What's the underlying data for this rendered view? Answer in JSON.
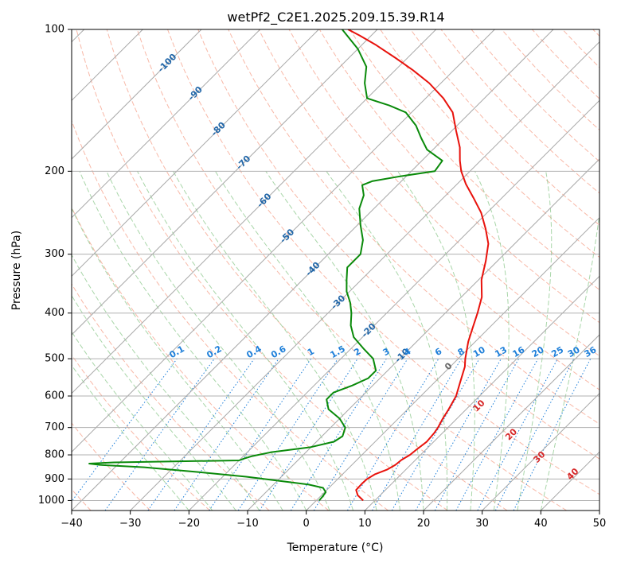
{
  "chart_data": {
    "type": "line",
    "subtype": "skew-t log-p diagram",
    "title": "wetPf2_C2E1.2025.209.15.39.R14",
    "xlabel": "Temperature (°C)",
    "ylabel": "Pressure (hPa)",
    "xlim": [
      -40,
      50
    ],
    "ylim": [
      1050,
      100
    ],
    "y_scale": "log",
    "grid": true,
    "x_ticks": [
      -40,
      -30,
      -20,
      -10,
      0,
      10,
      20,
      30,
      40,
      50
    ],
    "x_tick_labels": [
      "−40",
      "−30",
      "−20",
      "−10",
      "0",
      "10",
      "20",
      "30",
      "40",
      "50"
    ],
    "y_ticks": [
      1000,
      900,
      800,
      700,
      600,
      500,
      400,
      300,
      200,
      100
    ],
    "y_tick_labels": [
      "1000",
      "900",
      "800",
      "700",
      "600",
      "500",
      "400",
      "300",
      "200",
      "100"
    ],
    "series": [
      {
        "role": "temperature",
        "color": "#e8120c",
        "points": [
          [
            8,
            1000
          ],
          [
            6.2,
            975
          ],
          [
            5,
            950
          ],
          [
            4.9,
            920
          ],
          [
            5,
            900
          ],
          [
            5.5,
            880
          ],
          [
            6.8,
            860
          ],
          [
            7.4,
            840
          ],
          [
            7.6,
            820
          ],
          [
            8.2,
            800
          ],
          [
            8.4,
            780
          ],
          [
            8.8,
            750
          ],
          [
            8.6,
            720
          ],
          [
            8.3,
            700
          ],
          [
            7.6,
            670
          ],
          [
            7,
            640
          ],
          [
            6,
            600
          ],
          [
            4.3,
            560
          ],
          [
            2.5,
            520
          ],
          [
            1.2,
            500
          ],
          [
            -1.2,
            460
          ],
          [
            -2.8,
            430
          ],
          [
            -4.5,
            400
          ],
          [
            -6.5,
            370
          ],
          [
            -9.5,
            340
          ],
          [
            -12,
            310
          ],
          [
            -14.5,
            285
          ],
          [
            -17.5,
            265
          ],
          [
            -21,
            245
          ],
          [
            -24.8,
            228
          ],
          [
            -28.5,
            213
          ],
          [
            -31.5,
            200
          ],
          [
            -33.5,
            190
          ],
          [
            -35.8,
            178
          ],
          [
            -39.3,
            164
          ],
          [
            -43,
            150
          ],
          [
            -47,
            140
          ],
          [
            -52,
            130
          ],
          [
            -57,
            122
          ],
          [
            -62,
            115
          ],
          [
            -67.5,
            108
          ],
          [
            -72,
            103
          ],
          [
            -75,
            100
          ]
        ]
      },
      {
        "role": "dewpoint",
        "color": "#0a8a0a",
        "points": [
          [
            0.5,
            1000
          ],
          [
            0.4,
            980
          ],
          [
            0.2,
            960
          ],
          [
            -1,
            940
          ],
          [
            -4,
            925
          ],
          [
            -9,
            910
          ],
          [
            -16,
            890
          ],
          [
            -25,
            870
          ],
          [
            -35,
            850
          ],
          [
            -43,
            840
          ],
          [
            -45,
            835
          ],
          [
            -41,
            830
          ],
          [
            -28,
            825
          ],
          [
            -20,
            822
          ],
          [
            -19.5,
            815
          ],
          [
            -18.5,
            805
          ],
          [
            -16,
            790
          ],
          [
            -10,
            770
          ],
          [
            -7,
            750
          ],
          [
            -6.5,
            730
          ],
          [
            -7.5,
            700
          ],
          [
            -10,
            670
          ],
          [
            -13.5,
            640
          ],
          [
            -15.5,
            610
          ],
          [
            -15.5,
            590
          ],
          [
            -13.5,
            570
          ],
          [
            -12,
            550
          ],
          [
            -12,
            530
          ],
          [
            -14.5,
            500
          ],
          [
            -18,
            475
          ],
          [
            -21.5,
            450
          ],
          [
            -24,
            425
          ],
          [
            -26,
            400
          ],
          [
            -28,
            380
          ],
          [
            -30.5,
            360
          ],
          [
            -32.5,
            340
          ],
          [
            -34.5,
            320
          ],
          [
            -34.5,
            300
          ],
          [
            -36.5,
            280
          ],
          [
            -39.5,
            260
          ],
          [
            -42.5,
            240
          ],
          [
            -44,
            225
          ],
          [
            -46,
            214
          ],
          [
            -45,
            210
          ],
          [
            -41,
            205
          ],
          [
            -36,
            200
          ],
          [
            -36.5,
            190
          ],
          [
            -41,
            180
          ],
          [
            -44,
            170
          ],
          [
            -47,
            160
          ],
          [
            -51,
            150
          ],
          [
            -55,
            145
          ],
          [
            -60,
            140
          ],
          [
            -63,
            130
          ],
          [
            -65.5,
            120
          ],
          [
            -70,
            110
          ],
          [
            -76,
            100
          ]
        ]
      }
    ],
    "isotherm_labels": [
      {
        "value": "-100",
        "p": 118
      },
      {
        "value": "-90",
        "p": 137
      },
      {
        "value": "-80",
        "p": 163
      },
      {
        "value": "-70",
        "p": 192
      },
      {
        "value": "-60",
        "p": 231
      },
      {
        "value": "-50",
        "p": 275
      },
      {
        "value": "-40",
        "p": 323
      },
      {
        "value": "-30",
        "p": 380
      },
      {
        "value": "-20",
        "p": 436
      },
      {
        "value": "-10",
        "p": 493
      }
    ],
    "mixing_ratio_labels": [
      "0.1",
      "0.2",
      "0.4",
      "0.6",
      "1",
      "1.5",
      "2",
      "3",
      "4",
      "6",
      "8",
      "10",
      "13",
      "16",
      "20",
      "25",
      "30",
      "36"
    ],
    "moist_adiabat_labels": [
      "0",
      "10",
      "20",
      "30",
      "40"
    ],
    "colors": {
      "temperature": "#e8120c",
      "dewpoint": "#0a8a0a",
      "isotherm_label": "#2166a8",
      "mixing_ratio": "#1e7fd9",
      "moist_adiabat_label": "#d62728",
      "dry_adiabat": "#f5a08a",
      "moist_adiabat": "#8cc88c",
      "skew_line": "#a8a8a8",
      "grid": "#b0b0b0"
    }
  }
}
